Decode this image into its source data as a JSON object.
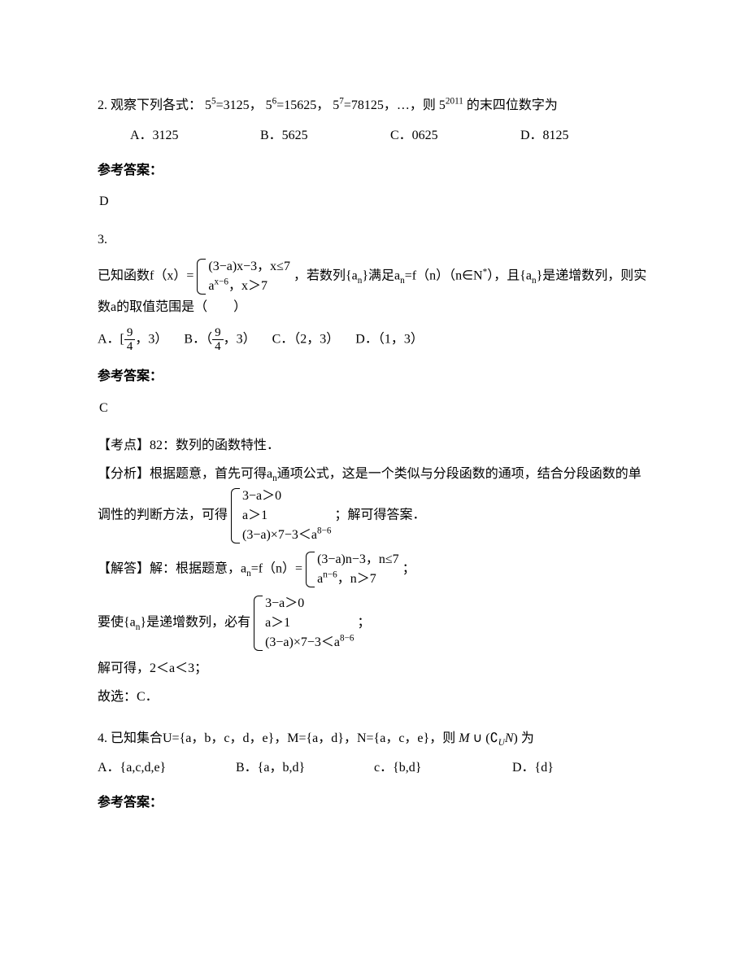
{
  "q2": {
    "prefix": "2. 观察下列各式：",
    "p1_base": "5",
    "p1_exp": "5",
    "p1_eq": "=3125，",
    "p2_base": "5",
    "p2_exp": "6",
    "p2_eq": "=15625，",
    "p3_base": "5",
    "p3_exp": "7",
    "p3_eq": "=78125，…，则",
    "p4_base": "5",
    "p4_exp": "2011",
    "suffix": "的末四位数字为",
    "optA": "A．3125",
    "optB": "B．5625",
    "optC": "C．0625",
    "optD": "D．8125",
    "answer_label": "参考答案：",
    "answer": "D"
  },
  "q3": {
    "num": "3.",
    "prefix": "已知函数f（x）=",
    "piece1": "(3−a)x−3，x≤7",
    "piece2a": "a",
    "piece2exp": "x−6",
    "piece2b": "，x＞7",
    "mid1": "，若数列{a",
    "mid1sub": "n",
    "mid2": "}满足a",
    "mid2sub": "n",
    "mid3": "=f（n）（n∈N",
    "mid3sup": "*",
    "mid4": "），且{a",
    "mid4sub": "n",
    "mid5": "}是递增数列，则实数a的取值范围是（　　）",
    "optA_pre": "A．[",
    "frac_num": "9",
    "frac_den": "4",
    "optA_post": "，3）",
    "optB_pre": "B．（",
    "optB_post": "，3）",
    "optC": "C．（2，3）",
    "optD": "D．（1，3）",
    "answer_label": "参考答案：",
    "answer": "C",
    "kd": "【考点】82：数列的函数特性．",
    "fx_a": "【分析】根据题意，首先可得a",
    "fx_asub": "n",
    "fx_b": "通项公式，这是一个类似与分段函数的通项，结合分段函数的单调性的判断方法，可得",
    "sys1": "3−a＞0",
    "sys2": "a＞1",
    "sys3a": "(3−a)×7−3＜a",
    "sys3exp": "8−6",
    "fx_c": "；解可得答案．",
    "jd_a": "【解答】解：根据题意，a",
    "jd_asub": "n",
    "jd_b": "=f（n）=",
    "jp1": "(3−a)n−3，n≤7",
    "jp2a": "a",
    "jp2exp": "n−6",
    "jp2b": "，n＞7",
    "jd_c": "；",
    "zz_a": "要使{a",
    "zz_asub": "n",
    "zz_b": "}是递增数列，必有",
    "zz_c": "；",
    "jie": "解可得，2＜a＜3；",
    "gx": "故选：C．"
  },
  "q4": {
    "text": "4. 已知集合U={a，b，c，d，e}，M={a，d}，N={a，c，e}，则",
    "expr_a": "M",
    "expr_cup": "∪",
    "expr_paren_l": "(",
    "expr_c": "∁",
    "expr_csub": "U",
    "expr_n": "N",
    "expr_paren_r": ")",
    "suffix": "为",
    "optA": "A．{a,c,d,e}",
    "optB": "B．{a，b,d}",
    "optC": "c．{b,d}",
    "optD": "D．{d}",
    "answer_label": "参考答案："
  }
}
